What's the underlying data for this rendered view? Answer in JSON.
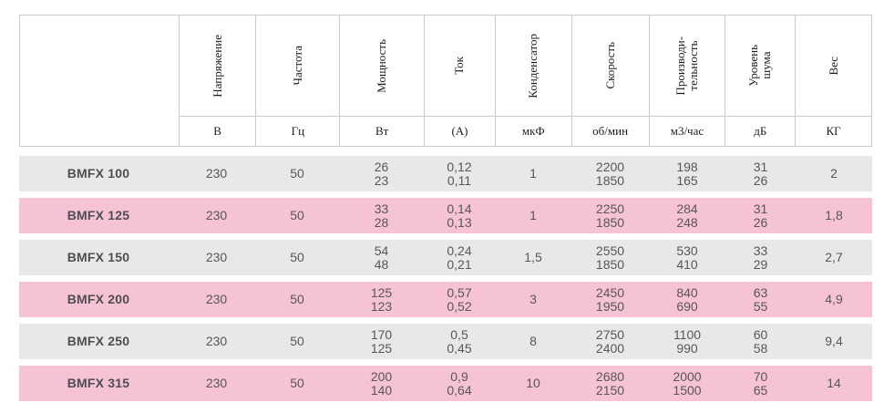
{
  "colors": {
    "row_gray": "#e9e8e8",
    "row_pink": "#f6c2d5",
    "border": "#cbcbcb",
    "header_text": "#1d1d1d",
    "data_text": "#57575a"
  },
  "chart_data": {
    "type": "table",
    "columns": [
      {
        "label": "",
        "unit": ""
      },
      {
        "label": "Напряжение",
        "unit": "В"
      },
      {
        "label": "Частота",
        "unit": "Гц"
      },
      {
        "label": "Мощность",
        "unit": "Вт"
      },
      {
        "label": "Ток",
        "unit": "(А)"
      },
      {
        "label": "Конденсатор",
        "unit": "мкФ"
      },
      {
        "label": "Скорость",
        "unit": "об/мин"
      },
      {
        "label": "Производи-\nтельность",
        "unit": "м3/час"
      },
      {
        "label": "Уровень\nшума",
        "unit": "дБ"
      },
      {
        "label": "Вес",
        "unit": "КГ"
      }
    ],
    "rows": [
      {
        "model": "BMFX 100",
        "voltage": "230",
        "frequency": "50",
        "power": [
          "26",
          "23"
        ],
        "current": [
          "0,12",
          "0,11"
        ],
        "capacitor": "1",
        "speed": [
          "2200",
          "1850"
        ],
        "airflow": [
          "198",
          "165"
        ],
        "noise": [
          "31",
          "26"
        ],
        "weight": "2"
      },
      {
        "model": "BMFX 125",
        "voltage": "230",
        "frequency": "50",
        "power": [
          "33",
          "28"
        ],
        "current": [
          "0,14",
          "0,13"
        ],
        "capacitor": "1",
        "speed": [
          "2250",
          "1850"
        ],
        "airflow": [
          "284",
          "248"
        ],
        "noise": [
          "31",
          "26"
        ],
        "weight": "1,8"
      },
      {
        "model": "BMFX 150",
        "voltage": "230",
        "frequency": "50",
        "power": [
          "54",
          "48"
        ],
        "current": [
          "0,24",
          "0,21"
        ],
        "capacitor": "1,5",
        "speed": [
          "2550",
          "1850"
        ],
        "airflow": [
          "530",
          "410"
        ],
        "noise": [
          "33",
          "29"
        ],
        "weight": "2,7"
      },
      {
        "model": "BMFX 200",
        "voltage": "230",
        "frequency": "50",
        "power": [
          "125",
          "123"
        ],
        "current": [
          "0,57",
          "0,52"
        ],
        "capacitor": "3",
        "speed": [
          "2450",
          "1950"
        ],
        "airflow": [
          "840",
          "690"
        ],
        "noise": [
          "63",
          "55"
        ],
        "weight": "4,9"
      },
      {
        "model": "BMFX 250",
        "voltage": "230",
        "frequency": "50",
        "power": [
          "170",
          "125"
        ],
        "current": [
          "0,5",
          "0,45"
        ],
        "capacitor": "8",
        "speed": [
          "2750",
          "2400"
        ],
        "airflow": [
          "1100",
          "990"
        ],
        "noise": [
          "60",
          "58"
        ],
        "weight": "9,4"
      },
      {
        "model": "BMFX 315",
        "voltage": "230",
        "frequency": "50",
        "power": [
          "200",
          "140"
        ],
        "current": [
          "0,9",
          "0,64"
        ],
        "capacitor": "10",
        "speed": [
          "2680",
          "2150"
        ],
        "airflow": [
          "2000",
          "1500"
        ],
        "noise": [
          "70",
          "65"
        ],
        "weight": "14"
      }
    ]
  }
}
